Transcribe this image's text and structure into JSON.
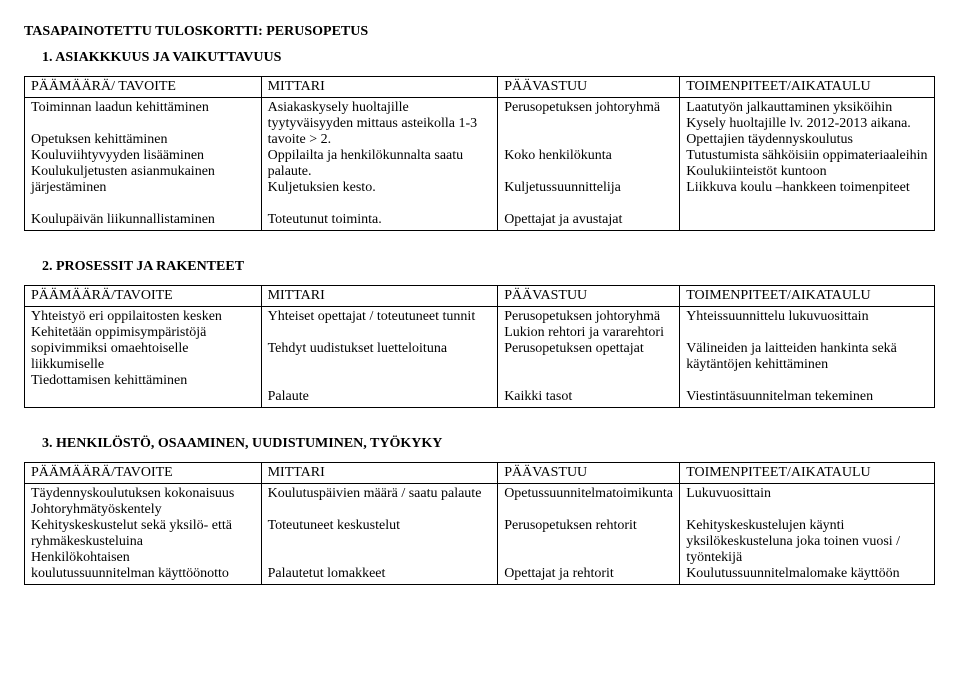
{
  "title": "TASAPAINOTETTU TULOSKORTTI: PERUSOPETUS",
  "sections": [
    {
      "heading": "1.  ASIAKKKUUS JA VAIKUTTAVUUS",
      "headers": [
        "PÄÄMÄÄRÄ/ TAVOITE",
        "MITTARI",
        "PÄÄVASTUU",
        "TOIMENPITEET/AIKATAULU"
      ],
      "cells": [
        [
          "Toiminnan laadun kehittäminen",
          "",
          "Opetuksen kehittäminen",
          "Kouluviihtyvyyden lisääminen",
          "Koulukuljetusten asianmukainen järjestäminen",
          "",
          "Koulupäivän liikunnallistaminen"
        ],
        [
          "Asiakaskysely huoltajille tyytyväisyyden mittaus asteikolla 1-3 tavoite > 2.",
          "Oppilailta ja henkilökunnalta saatu palaute.",
          "Kuljetuksien  kesto.",
          "",
          "Toteutunut toiminta."
        ],
        [
          "Perusopetuksen johtoryhmä",
          "",
          "",
          "Koko henkilökunta",
          "",
          "Kuljetussuunnittelija",
          "",
          "Opettajat ja avustajat"
        ],
        [
          "Laatutyön jalkauttaminen yksiköihin",
          "Kysely huoltajille lv. 2012-2013 aikana.",
          "Opettajien täydennyskoulutus",
          "Tutustumista sähköisiin oppimateriaaleihin",
          "Koulukiinteistöt kuntoon",
          "Liikkuva koulu –hankkeen toimenpiteet"
        ]
      ]
    },
    {
      "heading": "2.  PROSESSIT JA RAKENTEET",
      "headers": [
        "PÄÄMÄÄRÄ/TAVOITE",
        "MITTARI",
        "PÄÄVASTUU",
        "TOIMENPITEET/AIKATAULU"
      ],
      "cells": [
        [
          "Yhteistyö eri oppilaitosten kesken",
          "Kehitetään oppimisympäristöjä sopivimmiksi omaehtoiselle liikkumiselle",
          "Tiedottamisen kehittäminen"
        ],
        [
          "Yhteiset opettajat / toteutuneet tunnit",
          "",
          "Tehdyt uudistukset luetteloituna",
          "",
          "",
          "Palaute"
        ],
        [
          "Perusopetuksen johtoryhmä",
          "Lukion rehtori ja vararehtori",
          "Perusopetuksen opettajat",
          "",
          "",
          "Kaikki tasot"
        ],
        [
          "Yhteissuunnittelu lukuvuosittain",
          "",
          "Välineiden ja laitteiden hankinta sekä käytäntöjen kehittäminen",
          "",
          "Viestintäsuunnitelman tekeminen"
        ]
      ]
    },
    {
      "heading": "3.   HENKILÖSTÖ, OSAAMINEN, UUDISTUMINEN, TYÖKYKY",
      "headers": [
        "PÄÄMÄÄRÄ/TAVOITE",
        "MITTARI",
        "PÄÄVASTUU",
        "TOIMENPITEET/AIKATAULU"
      ],
      "cells": [
        [
          "Täydennyskoulutuksen kokonaisuus",
          "Johtoryhmätyöskentely",
          "Kehityskeskustelut sekä yksilö- että ryhmäkeskusteluina",
          "Henkilökohtaisen koulutussuunnitelman käyttöönotto"
        ],
        [
          "Koulutuspäivien määrä / saatu palaute",
          "",
          "Toteutuneet keskustelut",
          "",
          "",
          "Palautetut lomakkeet"
        ],
        [
          "Opetussuunnitelmatoimikunta",
          "",
          "Perusopetuksen rehtorit",
          "",
          "",
          "Opettajat ja rehtorit"
        ],
        [
          "Lukuvuosittain",
          "",
          "Kehityskeskustelujen käynti yksilökeskusteluna joka toinen vuosi / työntekijä",
          "Koulutussuunnitelmalomake käyttöön"
        ]
      ]
    }
  ]
}
